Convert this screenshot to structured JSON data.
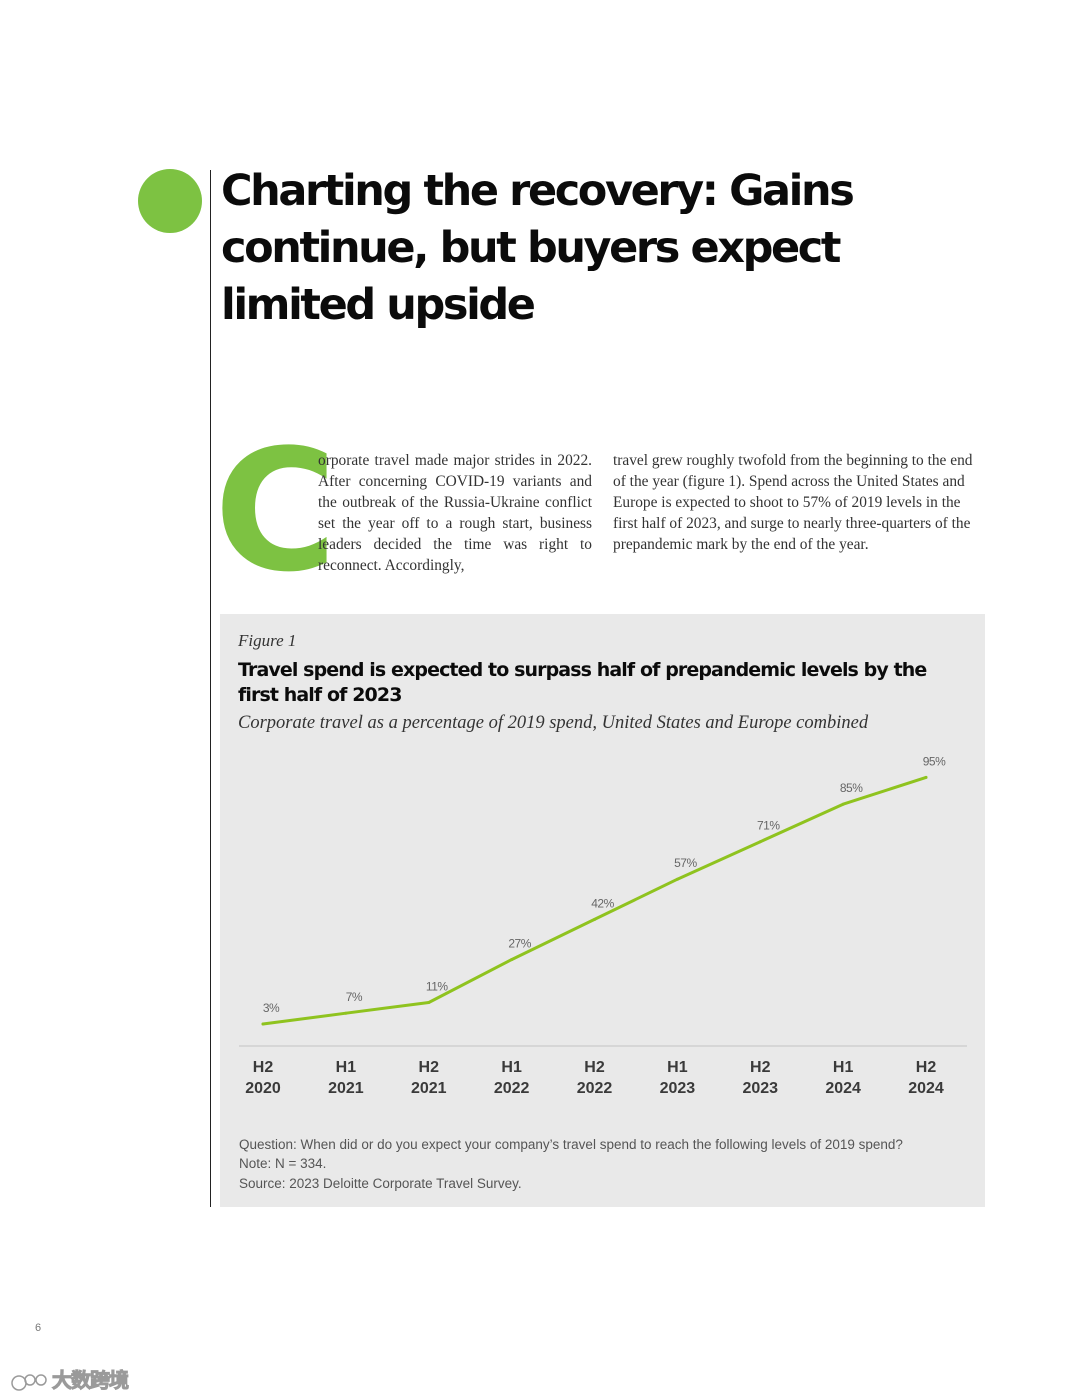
{
  "article": {
    "title": "Charting the recovery: Gains continue, but buyers expect limited upside",
    "drop_cap": "C",
    "col1_text": "orporate travel made major strides in 2022. After concerning COVID-19 variants and the outbreak of the Russia-Ukraine conflict set the year off to a rough start, business leaders decided the time was right to reconnect. Accordingly,",
    "col2_text": "travel grew roughly twofold from the beginning to the end of the year (figure 1). Spend across the United States and Europe is expected to shoot to 57% of 2019 levels in the first half of 2023, and surge to nearly three-quarters of the prepandemic mark by the end of the year."
  },
  "figure": {
    "label": "Figure 1",
    "title": "Travel spend is expected to surpass half of prepandemic levels by the first half of 2023",
    "subtitle": "Corporate travel as a percentage of 2019 spend, United States and Europe combined",
    "question": "Question: When did or do you expect your company’s travel spend to reach the following levels of 2019 spend?",
    "note": "Note: N = 334.",
    "source": "Source: 2023 Deloitte Corporate Travel Survey."
  },
  "chart_data": {
    "type": "line",
    "categories": [
      [
        "H2",
        "2020"
      ],
      [
        "H1",
        "2021"
      ],
      [
        "H2",
        "2021"
      ],
      [
        "H1",
        "2022"
      ],
      [
        "H2",
        "2022"
      ],
      [
        "H1",
        "2023"
      ],
      [
        "H2",
        "2023"
      ],
      [
        "H1",
        "2024"
      ],
      [
        "H2",
        "2024"
      ]
    ],
    "values": [
      3,
      7,
      11,
      27,
      42,
      57,
      71,
      85,
      95
    ],
    "data_labels": [
      "3%",
      "7%",
      "11%",
      "27%",
      "42%",
      "57%",
      "71%",
      "85%",
      "95%"
    ],
    "line_color": "#8fc31f",
    "grid": false,
    "ylim": [
      0,
      100
    ]
  },
  "page_number": "6",
  "watermark": "大数跨境",
  "colors": {
    "accent": "#7dc242",
    "figure_background": "#e9e9e9"
  }
}
